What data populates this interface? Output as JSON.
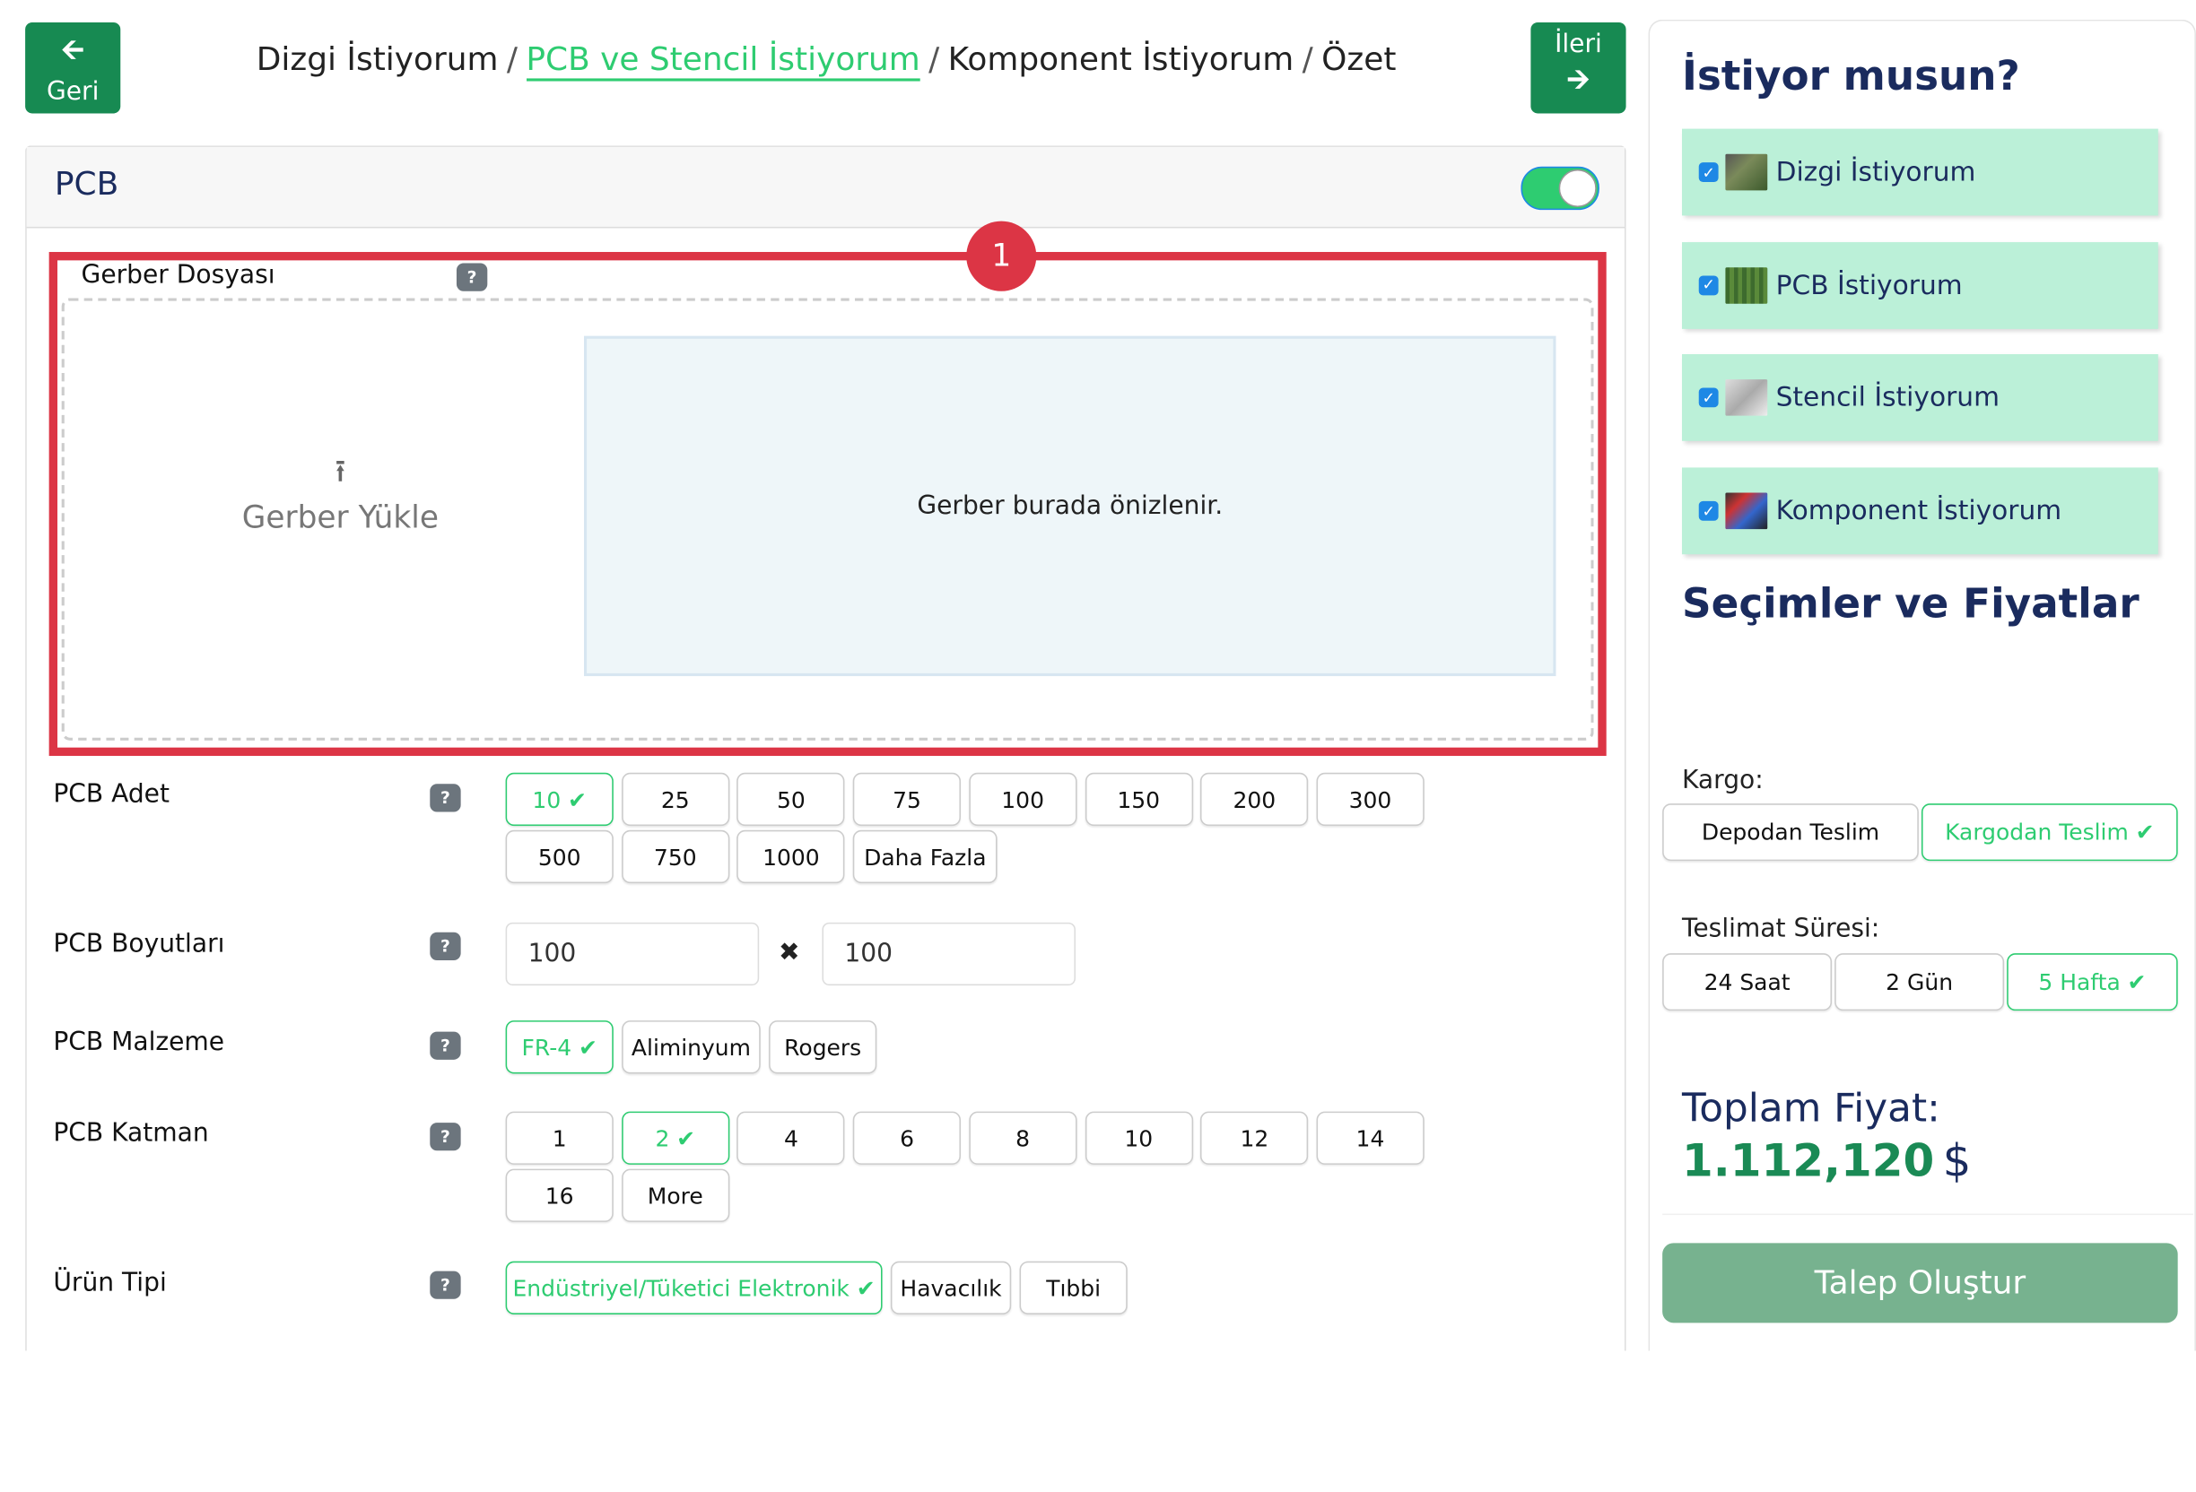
{
  "nav": {
    "back_label": "Geri",
    "next_label": "İleri"
  },
  "breadcrumb": [
    "Dizgi İstiyorum",
    "PCB ve Stencil İstiyorum",
    "Komponent İstiyorum",
    "Özet"
  ],
  "breadcrumb_active_index": 1,
  "pcb_card": {
    "title": "PCB",
    "enabled": true,
    "annotation_badge": "1",
    "gerber": {
      "label": "Gerber Dosyası",
      "help": "?",
      "upload_label": "Gerber Yükle",
      "preview_text": "Gerber burada önizlenir."
    },
    "adet": {
      "label": "PCB Adet",
      "options": [
        "10",
        "25",
        "50",
        "75",
        "100",
        "150",
        "200",
        "300",
        "500",
        "750",
        "1000",
        "Daha Fazla"
      ],
      "selected": "10"
    },
    "boyutlar": {
      "label": "PCB Boyutları",
      "width": "100",
      "height": "100",
      "separator": "✖"
    },
    "malzeme": {
      "label": "PCB Malzeme",
      "options": [
        "FR-4",
        "Aliminyum",
        "Rogers"
      ],
      "selected": "FR-4"
    },
    "katman": {
      "label": "PCB Katman",
      "options": [
        "1",
        "2",
        "4",
        "6",
        "8",
        "10",
        "12",
        "14",
        "16",
        "More"
      ],
      "selected": "2"
    },
    "urun_tipi": {
      "label": "Ürün Tipi",
      "options": [
        "Endüstriyel/Tüketici Elektronik",
        "Havacılık",
        "Tıbbi"
      ],
      "selected": "Endüstriyel/Tüketici Elektronik"
    }
  },
  "sidebar": {
    "title": "İstiyor musun?",
    "items": [
      {
        "label": "Dizgi İstiyorum",
        "checked": true
      },
      {
        "label": "PCB İstiyorum",
        "checked": true
      },
      {
        "label": "Stencil İstiyorum",
        "checked": true
      },
      {
        "label": "Komponent İstiyorum",
        "checked": true
      }
    ],
    "section_title": "Seçimler ve Fiyatlar",
    "kargo": {
      "label": "Kargo:",
      "options": [
        "Depodan Teslim",
        "Kargodan Teslim"
      ],
      "selected": "Kargodan Teslim"
    },
    "teslimat": {
      "label": "Teslimat Süresi:",
      "options": [
        "24 Saat",
        "2 Gün",
        "5 Hafta"
      ],
      "selected": "5 Hafta"
    },
    "total_label": "Toplam Fiyat:",
    "total_value": "1.112,120",
    "currency": "$",
    "submit_label": "Talep Oluştur"
  },
  "colors": {
    "primary_green": "#178a52",
    "accent_green": "#2ecc71",
    "navy": "#1a2b5e",
    "annotation_red": "#dc3545",
    "item_bg": "#bbf0d8",
    "submit_bg": "#77b28f"
  }
}
